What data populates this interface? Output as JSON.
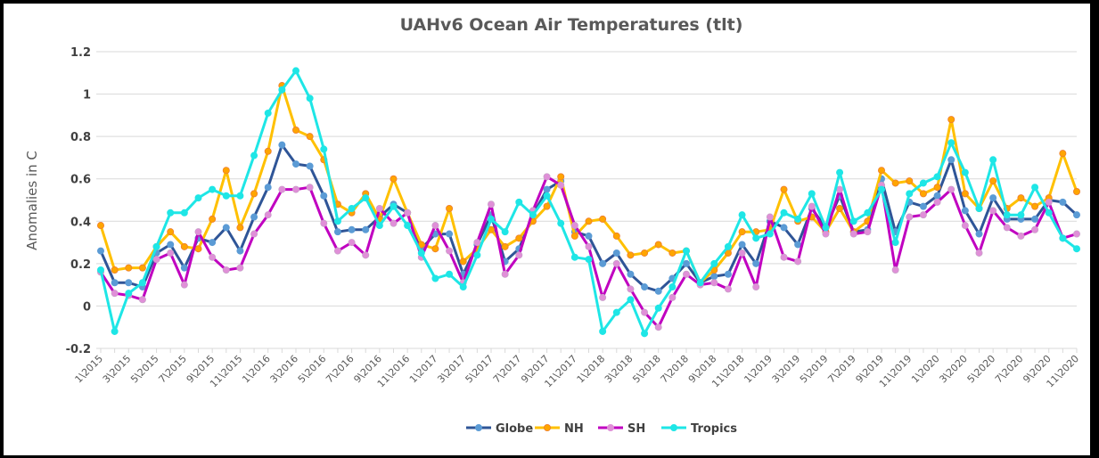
{
  "chart_data": {
    "type": "line",
    "title": "UAHv6 Ocean Air Temperatures (tlt)",
    "xlabel": "",
    "ylabel": "Anomalies in C",
    "ylim": [
      -0.2,
      1.2
    ],
    "yticks": [
      "-0.2",
      "0",
      "0.2",
      "0.4",
      "0.6",
      "0.8",
      "1",
      "1.2"
    ],
    "ytick_values": [
      -0.2,
      0,
      0.2,
      0.4,
      0.6,
      0.8,
      1.0,
      1.2
    ],
    "grid": true,
    "legend_position": "bottom",
    "x": [
      "1\\2015",
      "2\\2015",
      "3\\2015",
      "4\\2015",
      "5\\2015",
      "6\\2015",
      "7\\2015",
      "8\\2015",
      "9\\2015",
      "10\\2015",
      "11\\2015",
      "12\\2015",
      "1\\2016",
      "2\\2016",
      "3\\2016",
      "4\\2016",
      "5\\2016",
      "6\\2016",
      "7\\2016",
      "8\\2016",
      "9\\2016",
      "10\\2016",
      "11\\2016",
      "12\\2016",
      "1\\2017",
      "2\\2017",
      "3\\2017",
      "4\\2017",
      "5\\2017",
      "6\\2017",
      "7\\2017",
      "8\\2017",
      "9\\2017",
      "10\\2017",
      "11\\2017",
      "12\\2017",
      "1\\2018",
      "2\\2018",
      "3\\2018",
      "4\\2018",
      "5\\2018",
      "6\\2018",
      "7\\2018",
      "8\\2018",
      "9\\2018",
      "10\\2018",
      "11\\2018",
      "12\\2018",
      "1\\2019",
      "2\\2019",
      "3\\2019",
      "4\\2019",
      "5\\2019",
      "6\\2019",
      "7\\2019",
      "8\\2019",
      "9\\2019",
      "10\\2019",
      "11\\2019",
      "12\\2019",
      "1\\2020",
      "2\\2020",
      "3\\2020",
      "4\\2020",
      "5\\2020",
      "6\\2020",
      "7\\2020",
      "8\\2020",
      "9\\2020",
      "10\\2020",
      "11\\2020"
    ],
    "xtick_labels": [
      "1\\2015",
      "3\\2015",
      "5\\2015",
      "7\\2015",
      "9\\2015",
      "11\\2015",
      "1\\2016",
      "3\\2016",
      "5\\2016",
      "7\\2016",
      "9\\2016",
      "11\\2016",
      "1\\2017",
      "3\\2017",
      "5\\2017",
      "7\\2017",
      "9\\2017",
      "11\\2017",
      "1\\2018",
      "3\\2018",
      "5\\2018",
      "7\\2018",
      "9\\2018",
      "11\\2018",
      "1\\2019",
      "3\\2019",
      "5\\2019",
      "7\\2019",
      "9\\2019",
      "11\\2019",
      "1\\2020",
      "3\\2020",
      "5\\2020",
      "7\\2020",
      "9\\2020",
      "11\\2020"
    ],
    "series": [
      {
        "name": "Globe",
        "line_color": "#2f5597",
        "marker_color": "#5b9bd5",
        "values": [
          0.26,
          0.11,
          0.11,
          0.09,
          0.25,
          0.29,
          0.18,
          0.32,
          0.3,
          0.37,
          0.26,
          0.42,
          0.56,
          0.76,
          0.67,
          0.66,
          0.52,
          0.35,
          0.36,
          0.36,
          0.42,
          0.48,
          0.44,
          0.27,
          0.34,
          0.34,
          0.15,
          0.29,
          0.43,
          0.21,
          0.27,
          0.43,
          0.55,
          0.59,
          0.35,
          0.33,
          0.2,
          0.25,
          0.15,
          0.09,
          0.07,
          0.13,
          0.2,
          0.11,
          0.14,
          0.15,
          0.29,
          0.2,
          0.4,
          0.37,
          0.29,
          0.46,
          0.37,
          0.52,
          0.35,
          0.36,
          0.6,
          0.35,
          0.49,
          0.47,
          0.52,
          0.69,
          0.45,
          0.34,
          0.51,
          0.41,
          0.41,
          0.41,
          0.5,
          0.49,
          0.43
        ]
      },
      {
        "name": "NH",
        "line_color": "#ffc000",
        "marker_color": "#ffa500",
        "values": [
          0.38,
          0.17,
          0.18,
          0.18,
          0.28,
          0.35,
          0.28,
          0.27,
          0.41,
          0.64,
          0.37,
          0.53,
          0.73,
          1.04,
          0.83,
          0.8,
          0.69,
          0.48,
          0.44,
          0.53,
          0.41,
          0.6,
          0.44,
          0.29,
          0.27,
          0.46,
          0.21,
          0.27,
          0.36,
          0.28,
          0.32,
          0.4,
          0.47,
          0.61,
          0.33,
          0.4,
          0.41,
          0.33,
          0.24,
          0.25,
          0.29,
          0.25,
          0.26,
          0.11,
          0.17,
          0.25,
          0.35,
          0.35,
          0.36,
          0.55,
          0.4,
          0.42,
          0.35,
          0.46,
          0.35,
          0.4,
          0.64,
          0.58,
          0.59,
          0.53,
          0.56,
          0.88,
          0.53,
          0.46,
          0.59,
          0.46,
          0.51,
          0.47,
          0.51,
          0.72,
          0.54
        ]
      },
      {
        "name": "SH",
        "line_color": "#c000c0",
        "marker_color": "#e08fd8",
        "values": [
          0.16,
          0.06,
          0.05,
          0.03,
          0.22,
          0.25,
          0.1,
          0.35,
          0.23,
          0.17,
          0.18,
          0.34,
          0.43,
          0.55,
          0.55,
          0.56,
          0.39,
          0.26,
          0.3,
          0.24,
          0.46,
          0.39,
          0.44,
          0.23,
          0.38,
          0.26,
          0.11,
          0.3,
          0.48,
          0.15,
          0.24,
          0.45,
          0.61,
          0.57,
          0.38,
          0.28,
          0.04,
          0.2,
          0.08,
          -0.03,
          -0.1,
          0.04,
          0.15,
          0.1,
          0.11,
          0.08,
          0.25,
          0.09,
          0.42,
          0.23,
          0.21,
          0.47,
          0.34,
          0.55,
          0.34,
          0.35,
          0.57,
          0.17,
          0.42,
          0.43,
          0.49,
          0.55,
          0.38,
          0.25,
          0.45,
          0.37,
          0.33,
          0.36,
          0.49,
          0.32,
          0.34
        ]
      },
      {
        "name": "Tropics",
        "line_color": "#1ee6e6",
        "marker_color": "#1ee6e6",
        "values": [
          0.17,
          -0.12,
          0.06,
          0.11,
          0.28,
          0.44,
          0.44,
          0.51,
          0.55,
          0.52,
          0.52,
          0.71,
          0.91,
          1.02,
          1.11,
          0.98,
          0.74,
          0.4,
          0.46,
          0.51,
          0.38,
          0.47,
          0.38,
          0.25,
          0.13,
          0.15,
          0.09,
          0.24,
          0.41,
          0.35,
          0.49,
          0.43,
          0.52,
          0.39,
          0.23,
          0.22,
          -0.12,
          -0.03,
          0.03,
          -0.13,
          -0.01,
          0.09,
          0.26,
          0.11,
          0.2,
          0.28,
          0.43,
          0.32,
          0.34,
          0.44,
          0.41,
          0.53,
          0.37,
          0.63,
          0.4,
          0.44,
          0.55,
          0.3,
          0.53,
          0.58,
          0.61,
          0.77,
          0.63,
          0.46,
          0.69,
          0.43,
          0.43,
          0.56,
          0.44,
          0.32,
          0.27
        ]
      }
    ]
  }
}
